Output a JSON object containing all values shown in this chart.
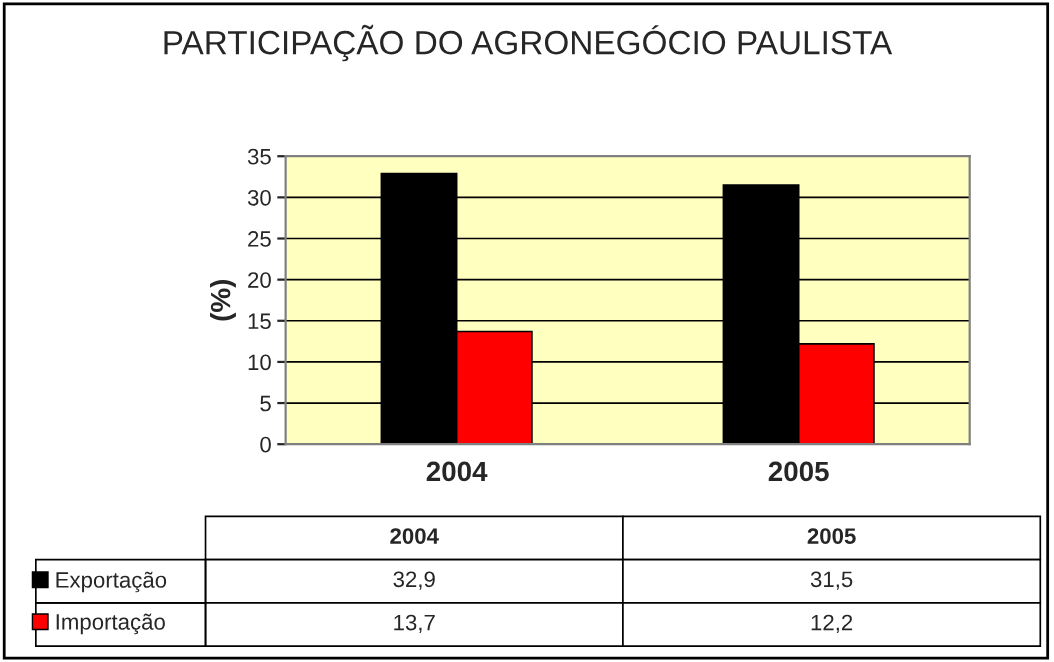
{
  "chart_data": {
    "type": "bar",
    "title": "PARTICIPAÇÃO DO AGRONEGÓCIO PAULISTA",
    "ylabel": "(%)",
    "categories": [
      "2004",
      "2005"
    ],
    "series": [
      {
        "name": "Exportação",
        "color": "#000000",
        "values": [
          32.9,
          31.5
        ],
        "value_labels": [
          "32,9",
          "31,5"
        ]
      },
      {
        "name": "Importação",
        "color": "#ff0000",
        "values": [
          13.7,
          12.2
        ],
        "value_labels": [
          "13,7",
          "12,2"
        ]
      }
    ],
    "ylim": [
      0,
      35
    ],
    "yticks": [
      0,
      5,
      10,
      15,
      20,
      25,
      30,
      35
    ],
    "grid": "y",
    "legend": "bottom"
  }
}
